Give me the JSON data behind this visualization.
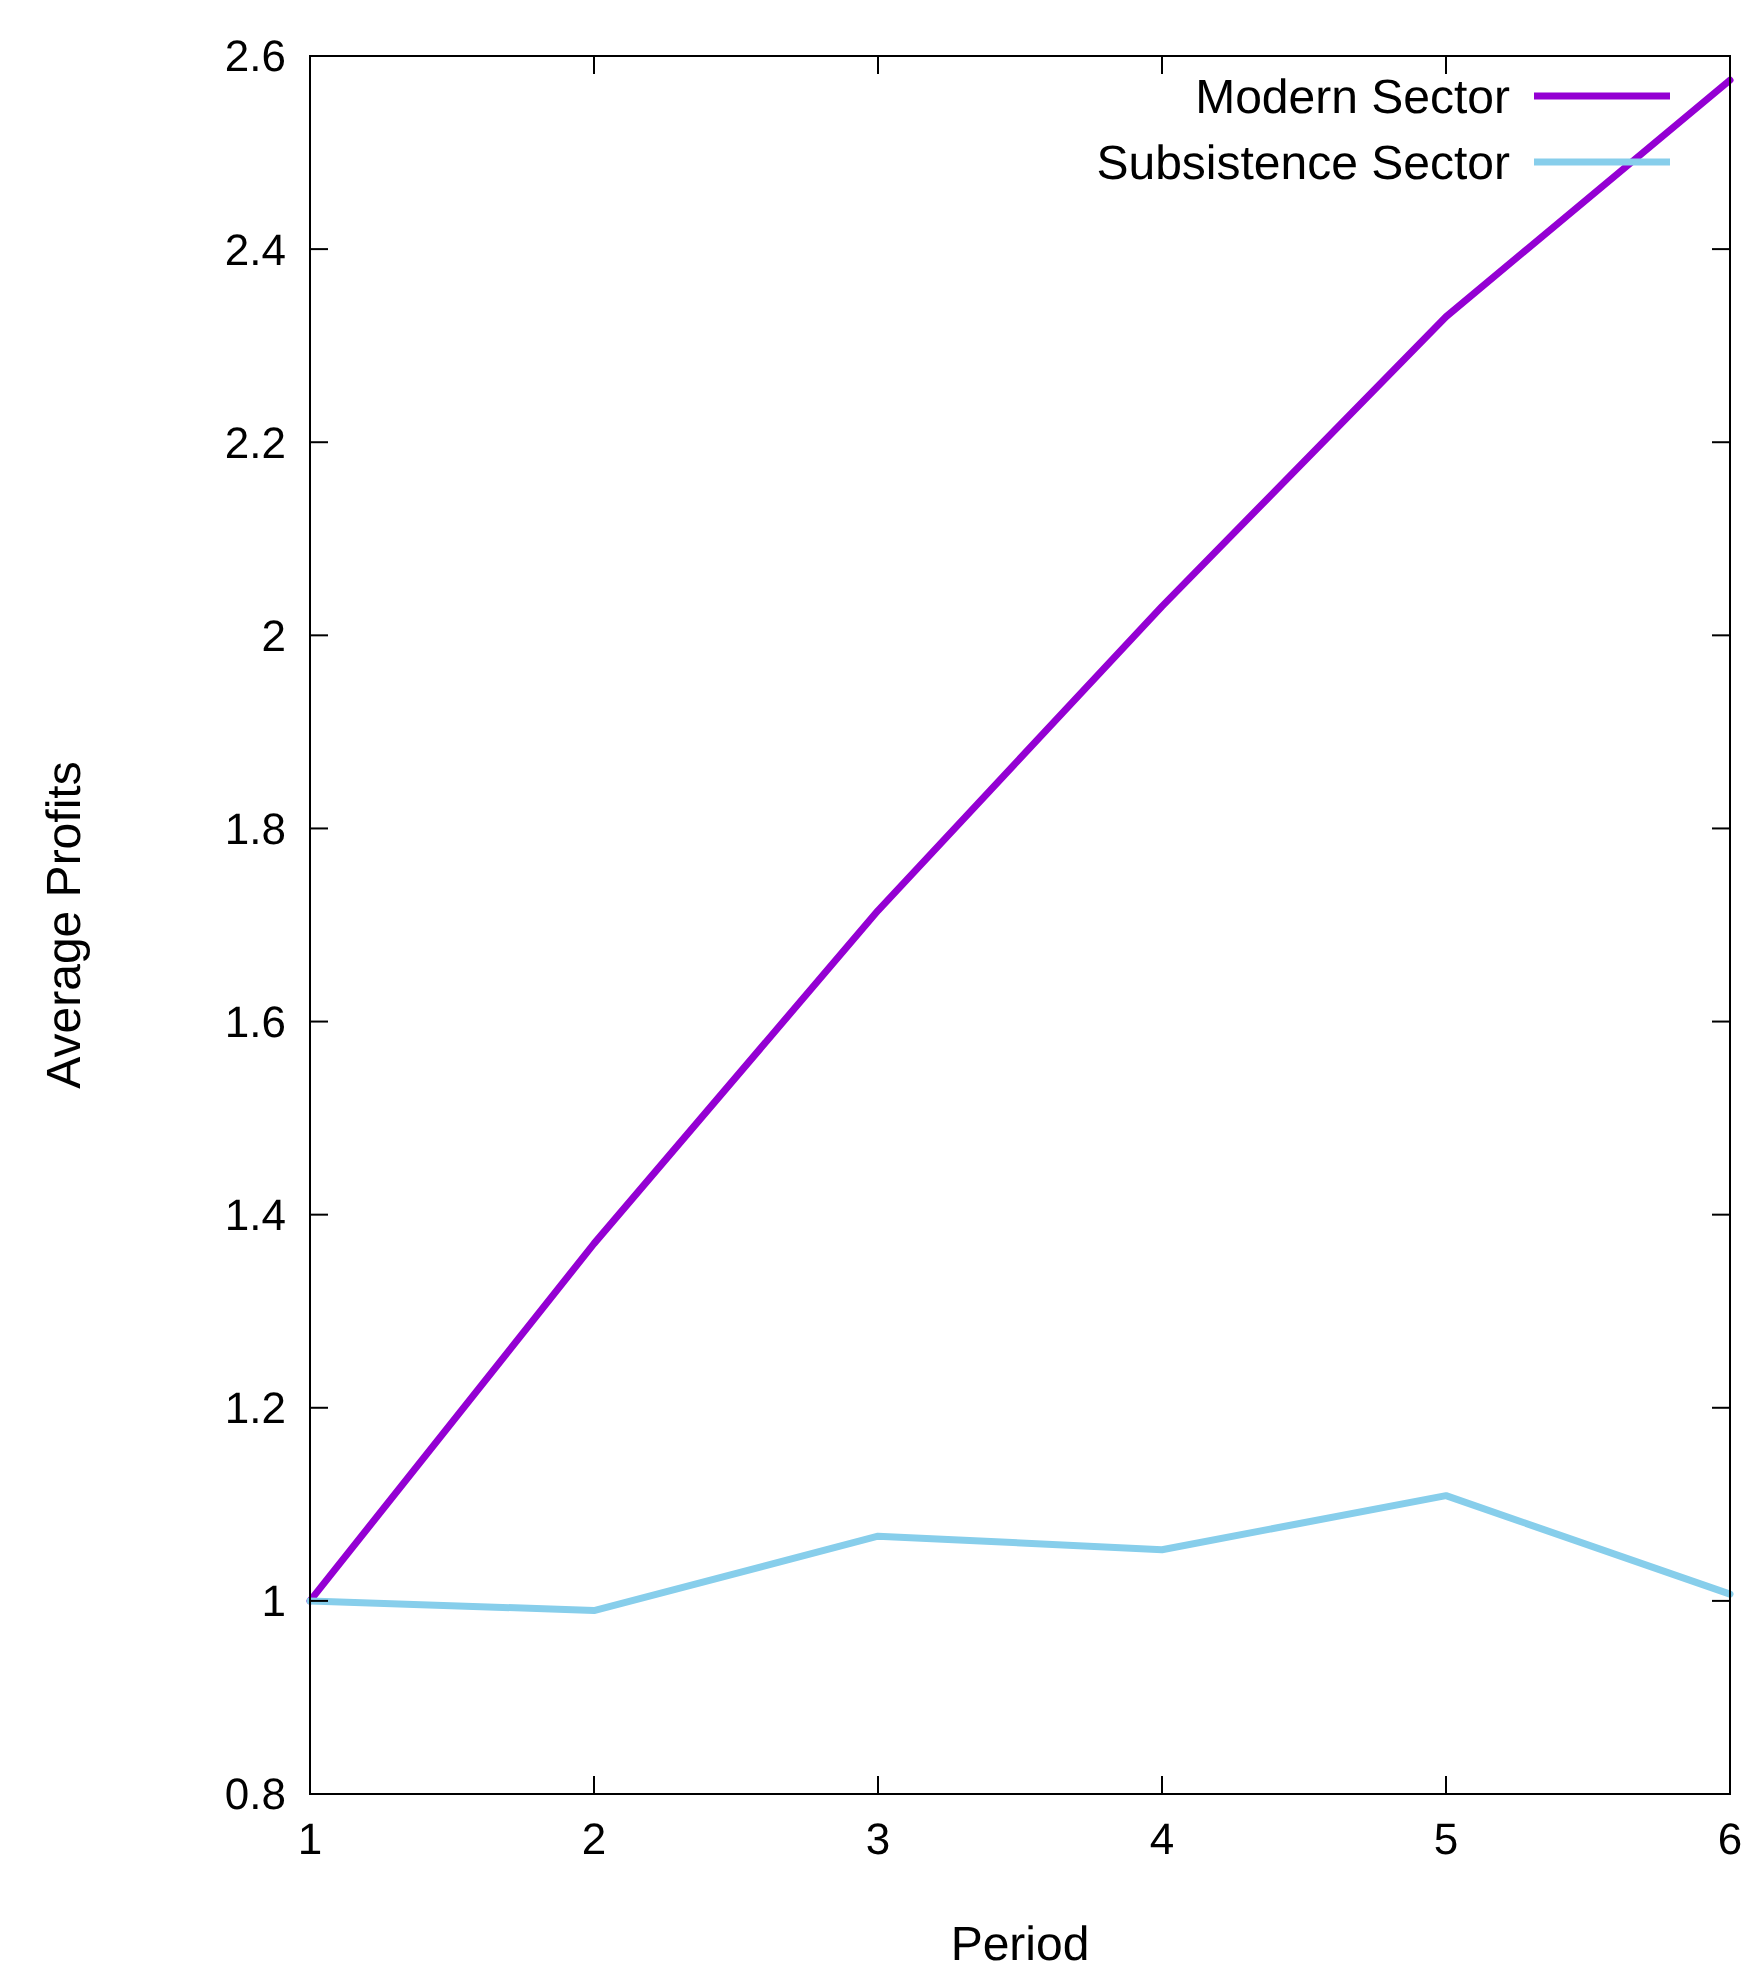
{
  "chart_data": {
    "type": "line",
    "xlabel": "Period",
    "ylabel": "Average Profits",
    "x": [
      1,
      2,
      3,
      4,
      5,
      6
    ],
    "series": [
      {
        "name": "Modern Sector",
        "color": "#9400d3",
        "values": [
          1.0,
          1.37,
          1.715,
          2.03,
          2.33,
          2.575
        ]
      },
      {
        "name": "Subsistence Sector",
        "color": "#87ceeb",
        "values": [
          1.0,
          0.99,
          1.067,
          1.053,
          1.109,
          1.007
        ]
      }
    ],
    "xlim": [
      1,
      6
    ],
    "xticks": [
      1,
      2,
      3,
      4,
      5,
      6
    ],
    "ylim": [
      0.8,
      2.6
    ],
    "yticks": [
      {
        "value": 0.8,
        "label": "0.8"
      },
      1,
      {
        "value": 1.2,
        "label": "1.2"
      },
      {
        "value": 1.4,
        "label": "1.4"
      },
      {
        "value": 1.6,
        "label": "1.6"
      },
      {
        "value": 1.8,
        "label": "1.8"
      },
      2,
      {
        "value": 2.2,
        "label": "2.2"
      },
      {
        "value": 2.4,
        "label": "2.4"
      },
      {
        "value": 2.6,
        "label": "2.6"
      }
    ],
    "legend": "top right",
    "grid": false,
    "line_style": "solid",
    "marker": "none"
  }
}
